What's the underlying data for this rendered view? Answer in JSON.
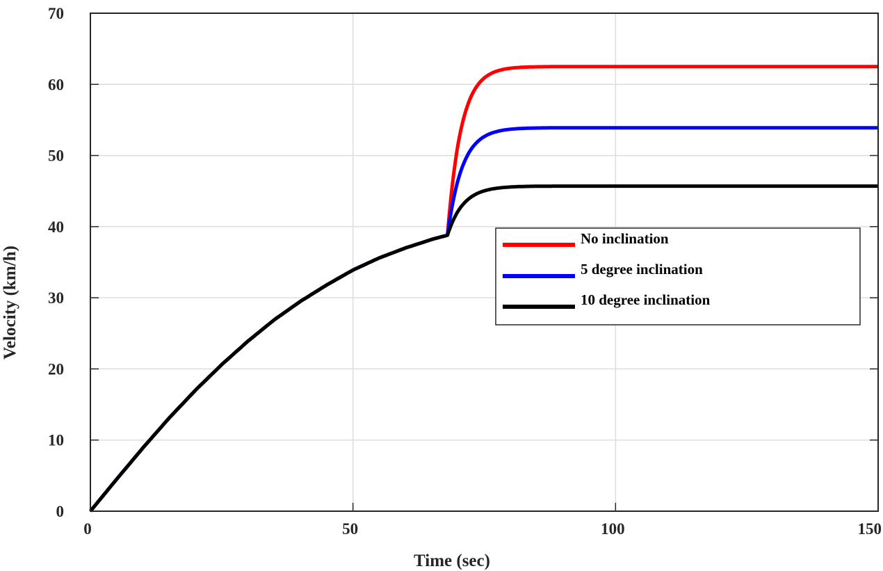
{
  "chart_data": {
    "type": "line",
    "title": "",
    "xlabel": "Time (sec)",
    "ylabel": "Velocity (km/h)",
    "xlim": [
      0,
      150
    ],
    "ylim": [
      0,
      70
    ],
    "xticks": [
      0,
      50,
      100,
      150
    ],
    "xtick_labels": [
      "0",
      "50",
      "100",
      "150"
    ],
    "yticks": [
      0,
      10,
      20,
      30,
      40,
      50,
      60,
      70
    ],
    "ytick_labels": [
      "0",
      "10",
      "20",
      "30",
      "40",
      "50",
      "60",
      "70"
    ],
    "grid": true,
    "legend_position": "center-right",
    "shared_phase": {
      "description": "All three series coincide from t=0 to t≈68 s",
      "x": [
        0,
        5,
        10,
        15,
        20,
        25,
        30,
        35,
        40,
        45,
        50,
        55,
        60,
        65,
        68
      ],
      "y": [
        0,
        4.5,
        8.9,
        13.1,
        17.0,
        20.6,
        23.9,
        26.9,
        29.5,
        31.8,
        33.9,
        35.6,
        37.0,
        38.2,
        38.8
      ]
    },
    "series": [
      {
        "name": "No inclination",
        "color": "#ff0000",
        "x": [
          0,
          68,
          70,
          72,
          74,
          76,
          78,
          80,
          85,
          90,
          100,
          120,
          150
        ],
        "y": [
          0,
          38.8,
          48.5,
          54.6,
          58.2,
          60.2,
          61.3,
          61.9,
          62.4,
          62.5,
          62.5,
          62.5,
          62.5
        ],
        "steady_state": 62.5
      },
      {
        "name": "5 degree inclination",
        "color": "#0000ff",
        "x": [
          0,
          68,
          70,
          72,
          74,
          76,
          78,
          80,
          85,
          90,
          100,
          120,
          150
        ],
        "y": [
          0,
          38.8,
          45.0,
          48.9,
          51.2,
          52.5,
          53.2,
          53.5,
          53.8,
          53.9,
          53.9,
          53.9,
          53.9
        ],
        "steady_state": 53.9
      },
      {
        "name": "10 degree inclination",
        "color": "#000000",
        "x": [
          0,
          68,
          70,
          72,
          74,
          76,
          78,
          80,
          85,
          90,
          100,
          120,
          150
        ],
        "y": [
          0,
          38.8,
          41.6,
          43.4,
          44.5,
          45.1,
          45.4,
          45.6,
          45.7,
          45.7,
          45.7,
          45.7,
          45.7
        ],
        "steady_state": 45.7
      }
    ]
  }
}
